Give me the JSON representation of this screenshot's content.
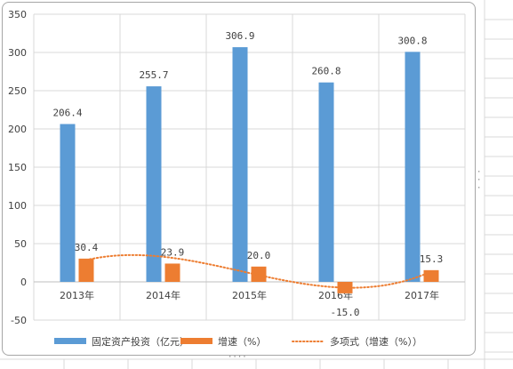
{
  "chart_data": {
    "type": "bar",
    "categories": [
      "2013年",
      "2014年",
      "2015年",
      "2016年",
      "2017年"
    ],
    "series": [
      {
        "name": "固定资产投资（亿元）",
        "values": [
          206.4,
          255.7,
          306.9,
          260.8,
          300.8
        ],
        "labels": [
          "206.4",
          "255.7",
          "306.9",
          "260.8",
          "300.8"
        ],
        "color": "#5b9bd5"
      },
      {
        "name": "增速（%）",
        "values": [
          30.4,
          23.9,
          20.0,
          -15.0,
          15.3
        ],
        "labels": [
          "30.4",
          "23.9",
          "20.0",
          "-15.0",
          "15.3"
        ],
        "color": "#ed7d31"
      }
    ],
    "trendline": {
      "name": "多项式（增速（%））",
      "source_series": "增速（%）",
      "kind": "polynomial",
      "color": "#ed7d31",
      "style": "dotted"
    },
    "ylim": [
      -50,
      350
    ],
    "yticks": [
      -50,
      0,
      50,
      100,
      150,
      200,
      250,
      300,
      350
    ],
    "ytick_labels": [
      "-50",
      "0",
      "50",
      "100",
      "150",
      "200",
      "250",
      "300",
      "350"
    ],
    "grid": true,
    "legend_position": "bottom",
    "title": "",
    "xlabel": "",
    "ylabel": ""
  }
}
